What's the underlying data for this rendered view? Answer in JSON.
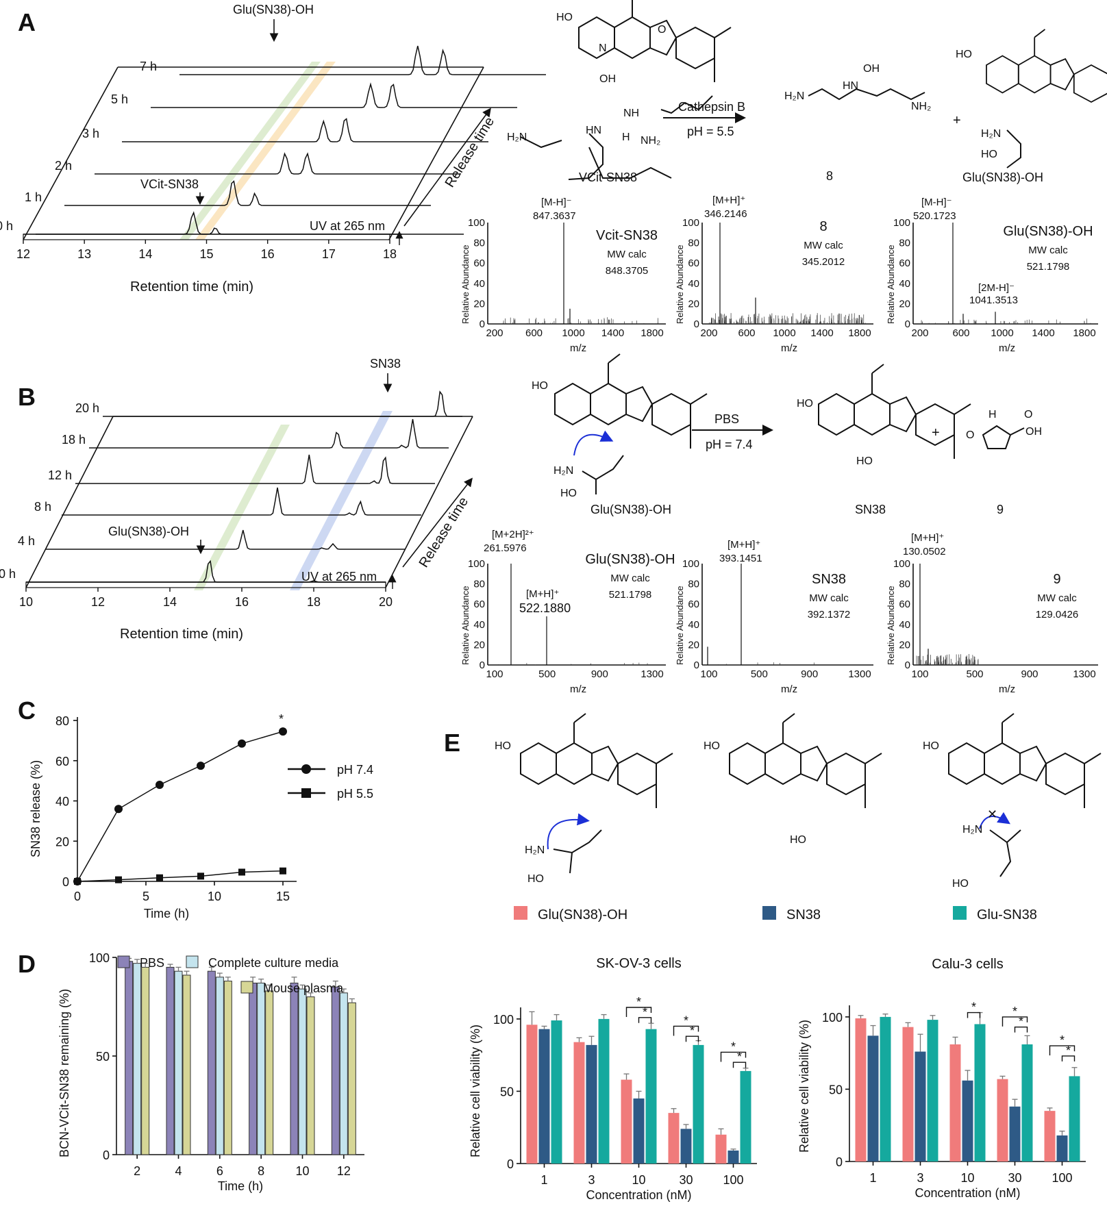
{
  "panels": {
    "A": "A",
    "B": "B",
    "C": "C",
    "D": "D",
    "E": "E"
  },
  "panelA": {
    "peak_top": "Glu(SN38)-OH",
    "peak_mid": "VCit-SN38",
    "times": [
      "7 h",
      "5 h",
      "3 h",
      "2 h",
      "1 h",
      "0 h"
    ],
    "uv": "UV at 265 nm",
    "release_time": "Release time",
    "x_ticks": [
      "12",
      "13",
      "14",
      "15",
      "16",
      "17",
      "18"
    ],
    "xlabel": "Retention time (min)",
    "reaction": {
      "enzyme": "Cathepsin B",
      "ph": "pH = 5.5",
      "reactant": "VCit-SN38",
      "product1": "8",
      "plus": "+",
      "product2": "Glu(SN38)-OH"
    },
    "ms": [
      {
        "ion": "[M-H]⁻",
        "mz": "847.3637",
        "name": "Vcit-SN38",
        "calc_label": "MW calc",
        "calc": "848.3705",
        "x_ticks": [
          "200",
          "600",
          "1000",
          "1400",
          "1800"
        ]
      },
      {
        "ion": "[M+H]⁺",
        "mz": "346.2146",
        "name": "8",
        "calc_label": "MW calc",
        "calc": "345.2012",
        "x_ticks": [
          "200",
          "600",
          "1000",
          "1400",
          "1800"
        ]
      },
      {
        "ion": "[M-H]⁻",
        "mz": "520.1723",
        "name": "Glu(SN38)-OH",
        "calc_label": "MW calc",
        "calc": "521.1798",
        "ion2": "[2M-H]⁻",
        "mz2": "1041.3513",
        "x_ticks": [
          "200",
          "600",
          "1000",
          "1400",
          "1800"
        ]
      }
    ]
  },
  "panelB": {
    "peak_top": "SN38",
    "peak_mid": "Glu(SN38)-OH",
    "times": [
      "20 h",
      "18 h",
      "12 h",
      "8 h",
      "4 h",
      "0 h"
    ],
    "uv": "UV at 265 nm",
    "release_time": "Release time",
    "x_ticks": [
      "10",
      "12",
      "14",
      "16",
      "18",
      "20"
    ],
    "xlabel": "Retention time (min)",
    "reaction": {
      "buffer": "PBS",
      "ph": "pH = 7.4",
      "reactant": "Glu(SN38)-OH",
      "product1": "SN38",
      "plus": "+",
      "product2": "9"
    },
    "ms": [
      {
        "ion": "[M+2H]²⁺",
        "mz": "261.5976",
        "name": "Glu(SN38)-OH",
        "calc_label": "MW calc",
        "calc": "521.1798",
        "ion2": "[M+H]⁺",
        "mz2": "522.1880",
        "x_ticks": [
          "100",
          "500",
          "900",
          "1300"
        ]
      },
      {
        "ion": "[M+H]⁺",
        "mz": "393.1451",
        "name": "SN38",
        "calc_label": "MW calc",
        "calc": "392.1372",
        "x_ticks": [
          "100",
          "500",
          "900",
          "1300"
        ]
      },
      {
        "ion": "[M+H]⁺",
        "mz": "130.0502",
        "name": "9",
        "calc_label": "MW calc",
        "calc": "129.0426",
        "x_ticks": [
          "100",
          "500",
          "900",
          "1300"
        ]
      }
    ]
  },
  "ms_axes": {
    "ylabel": "Relative Abundance",
    "xlabel": "m/z",
    "y_ticks": [
      "100",
      "80",
      "60",
      "40",
      "20",
      "0"
    ]
  },
  "panelE": {
    "legend": [
      "Glu(SN38)-OH",
      "SN38",
      "Glu-SN38"
    ]
  },
  "chart_data": [
    {
      "id": "C",
      "type": "line",
      "xlabel": "Time (h)",
      "ylabel": "SN38 release (%)",
      "xlim": [
        0,
        15
      ],
      "ylim": [
        0,
        80
      ],
      "x_ticks": [
        0,
        5,
        10,
        15
      ],
      "y_ticks": [
        0,
        20,
        40,
        60,
        80
      ],
      "series": [
        {
          "name": "pH 7.4",
          "marker": "circle",
          "x": [
            0,
            3,
            6,
            9,
            12,
            15
          ],
          "y": [
            0,
            36,
            48,
            57.5,
            68.5,
            74.5
          ]
        },
        {
          "name": "pH 5.5",
          "marker": "square",
          "x": [
            0,
            3,
            6,
            9,
            12,
            15
          ],
          "y": [
            0,
            0.8,
            1.8,
            2.6,
            4.6,
            5.2
          ]
        }
      ],
      "annotations": [
        "*"
      ]
    },
    {
      "id": "D",
      "type": "bar",
      "xlabel": "Time (h)",
      "ylabel": "BCN-VCit-SN38 remaining (%)",
      "categories": [
        "2",
        "4",
        "6",
        "8",
        "10",
        "12"
      ],
      "ylim": [
        0,
        100
      ],
      "y_ticks": [
        0,
        50,
        100
      ],
      "series": [
        {
          "name": "PBS",
          "color": "#8c83b8",
          "values": [
            98,
            95,
            93,
            87,
            87,
            85
          ]
        },
        {
          "name": "Complete culture media",
          "color": "#c4e4ee",
          "values": [
            97,
            93,
            90,
            87,
            84,
            82
          ]
        },
        {
          "name": "Mouse plasma",
          "color": "#d6d696",
          "values": [
            95,
            91,
            88,
            83,
            80,
            77
          ]
        }
      ]
    },
    {
      "id": "E1",
      "type": "bar",
      "title": "SK-OV-3 cells",
      "xlabel": "Concentration (nM)",
      "ylabel": "Relative cell viability (%)",
      "categories": [
        "1",
        "3",
        "10",
        "30",
        "100"
      ],
      "ylim": [
        0,
        108
      ],
      "y_ticks": [
        0,
        50,
        100
      ],
      "series": [
        {
          "name": "Glu(SN38)-OH",
          "color": "#f07b7b",
          "values": [
            96,
            84,
            58,
            35,
            20
          ]
        },
        {
          "name": "SN38",
          "color": "#2e5a86",
          "values": [
            93,
            82,
            45,
            24,
            9
          ]
        },
        {
          "name": "Glu-SN38",
          "color": "#15a99e",
          "values": [
            99,
            100,
            93,
            82,
            64
          ]
        }
      ],
      "annotations": [
        "*"
      ]
    },
    {
      "id": "E2",
      "type": "bar",
      "title": "Calu-3 cells",
      "xlabel": "Concentration (nM)",
      "ylabel": "Relative cell viability (%)",
      "categories": [
        "1",
        "3",
        "10",
        "30",
        "100"
      ],
      "ylim": [
        0,
        108
      ],
      "y_ticks": [
        0,
        50,
        100
      ],
      "series": [
        {
          "name": "Glu(SN38)-OH",
          "color": "#f07b7b",
          "values": [
            99,
            93,
            81,
            57,
            35
          ]
        },
        {
          "name": "SN38",
          "color": "#2e5a86",
          "values": [
            87,
            76,
            56,
            38,
            18
          ]
        },
        {
          "name": "Glu-SN38",
          "color": "#15a99e",
          "values": [
            100,
            98,
            95,
            81,
            59
          ]
        }
      ],
      "annotations": [
        "*"
      ]
    }
  ]
}
